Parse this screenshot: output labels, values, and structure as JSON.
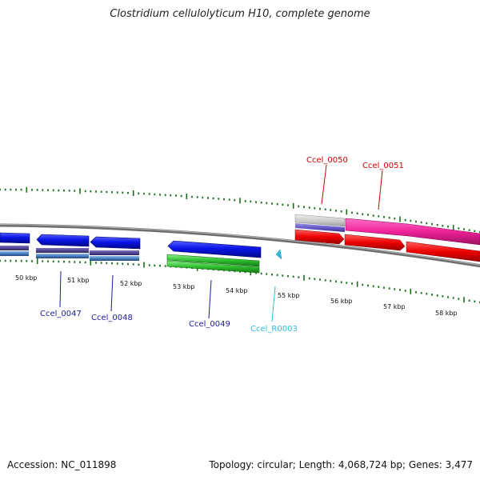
{
  "title": "Clostridium cellulolyticum H10, complete genome",
  "footer": {
    "accession": "Accession: NC_011898",
    "summary": "Topology: circular; Length: 4,068,724 bp; Genes: 3,477"
  },
  "colors": {
    "tick": "#1a6e1a",
    "backbone": "#7a7a7a",
    "gene_blue": "#0a14e6",
    "gene_green": "#2fbf2f",
    "gene_red": "#ee0000",
    "gene_pink": "#ee2299",
    "gene_gray": "#c8c8c8",
    "label_blue": "#1a1aa0",
    "label_red": "#cc0000",
    "label_cyan": "#33bbdd"
  },
  "scale_labels": [
    "50 kbp",
    "51 kbp",
    "52 kbp",
    "53 kbp",
    "54 kbp",
    "55 kbp",
    "56 kbp",
    "57 kbp",
    "58 kbp"
  ],
  "gene_labels": [
    {
      "id": "Ccel_0047",
      "color_key": "label_blue"
    },
    {
      "id": "Ccel_0048",
      "color_key": "label_blue"
    },
    {
      "id": "Ccel_0049",
      "color_key": "label_blue"
    },
    {
      "id": "Ccel_R0003",
      "color_key": "label_cyan"
    },
    {
      "id": "Ccel_0050",
      "color_key": "label_red"
    },
    {
      "id": "Ccel_0051",
      "color_key": "label_red"
    }
  ]
}
